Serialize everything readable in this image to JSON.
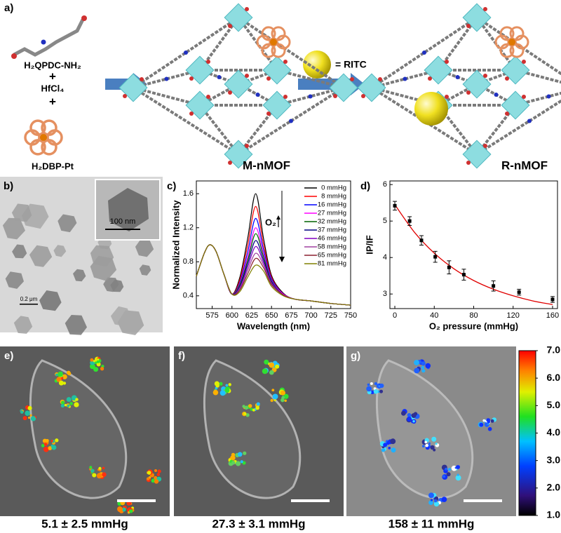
{
  "scheme": {
    "label": "a)",
    "reactant_1": "H₂QPDC-NH₂",
    "plus_1": "+",
    "reactant_2": "HfCl₄",
    "plus_2": "+",
    "reactant_3": "H₂DBP-Pt",
    "product_1": "M-nMOF",
    "product_2": "R-nMOF",
    "sphere_key": "= RITC"
  },
  "tem": {
    "label": "b)",
    "inset_scale": "100 nm",
    "scale": "0.2 μm"
  },
  "chart_data": [
    {
      "type": "line",
      "label": "c)",
      "xlabel": "Wavelength (nm)",
      "ylabel": "Normalized Intensity",
      "annotation": "O₂",
      "x": [
        555,
        565,
        572,
        580,
        590,
        600,
        610,
        620,
        630,
        640,
        650,
        665,
        680,
        700,
        725,
        750
      ],
      "xlim": [
        555,
        750
      ],
      "xticks": [
        575,
        600,
        625,
        650,
        675,
        700,
        725,
        750
      ],
      "ylim": [
        0.25,
        1.75
      ],
      "yticks": [
        0.4,
        0.8,
        1.2,
        1.6
      ],
      "legend": "upper right",
      "series": [
        {
          "name": "0 mmHg",
          "color": "#000000",
          "values": [
            0.63,
            0.9,
            1.0,
            0.92,
            0.65,
            0.42,
            0.62,
            1.08,
            1.6,
            1.07,
            0.64,
            0.43,
            0.36,
            0.34,
            0.31,
            0.29
          ]
        },
        {
          "name": "8 mmHg",
          "color": "#ff0000",
          "values": [
            0.63,
            0.9,
            1.0,
            0.92,
            0.65,
            0.42,
            0.59,
            1.0,
            1.45,
            1.0,
            0.62,
            0.42,
            0.36,
            0.34,
            0.31,
            0.29
          ]
        },
        {
          "name": "16 mmHg",
          "color": "#0000ff",
          "values": [
            0.63,
            0.9,
            1.0,
            0.92,
            0.65,
            0.42,
            0.56,
            0.92,
            1.31,
            0.94,
            0.6,
            0.42,
            0.36,
            0.34,
            0.31,
            0.29
          ]
        },
        {
          "name": "27 mmHg",
          "color": "#ff00ff",
          "values": [
            0.63,
            0.9,
            1.0,
            0.92,
            0.65,
            0.42,
            0.54,
            0.86,
            1.2,
            0.89,
            0.58,
            0.42,
            0.36,
            0.34,
            0.31,
            0.29
          ]
        },
        {
          "name": "32 mmHg",
          "color": "#006400",
          "values": [
            0.63,
            0.9,
            1.0,
            0.92,
            0.65,
            0.42,
            0.53,
            0.82,
            1.13,
            0.86,
            0.57,
            0.41,
            0.36,
            0.34,
            0.31,
            0.29
          ]
        },
        {
          "name": "37 mmHg",
          "color": "#000080",
          "values": [
            0.63,
            0.9,
            1.0,
            0.92,
            0.65,
            0.42,
            0.51,
            0.78,
            1.05,
            0.82,
            0.56,
            0.41,
            0.36,
            0.34,
            0.31,
            0.29
          ]
        },
        {
          "name": "46 mmHg",
          "color": "#8000c0",
          "values": [
            0.63,
            0.9,
            1.0,
            0.92,
            0.65,
            0.42,
            0.5,
            0.74,
            0.98,
            0.79,
            0.55,
            0.41,
            0.36,
            0.34,
            0.31,
            0.29
          ]
        },
        {
          "name": "58 mmHg",
          "color": "#a040a0",
          "values": [
            0.63,
            0.9,
            1.0,
            0.92,
            0.65,
            0.42,
            0.48,
            0.7,
            0.9,
            0.76,
            0.54,
            0.41,
            0.36,
            0.34,
            0.31,
            0.29
          ]
        },
        {
          "name": "65 mmHg",
          "color": "#8b2030",
          "values": [
            0.63,
            0.9,
            1.0,
            0.92,
            0.65,
            0.42,
            0.47,
            0.66,
            0.84,
            0.73,
            0.53,
            0.41,
            0.36,
            0.34,
            0.31,
            0.29
          ]
        },
        {
          "name": "81 mmHg",
          "color": "#808000",
          "values": [
            0.63,
            0.9,
            1.0,
            0.92,
            0.65,
            0.42,
            0.45,
            0.62,
            0.76,
            0.69,
            0.51,
            0.4,
            0.36,
            0.34,
            0.31,
            0.29
          ]
        }
      ]
    },
    {
      "type": "scatter",
      "label": "d)",
      "xlabel": "O₂ pressure (mmHg)",
      "ylabel": "IP/IF",
      "color": "#000000",
      "x": [
        0,
        15,
        27,
        41,
        55,
        70,
        100,
        126,
        160
      ],
      "values": [
        5.42,
        5.0,
        4.47,
        4.02,
        3.73,
        3.53,
        3.22,
        3.05,
        2.85
      ],
      "errors": [
        0.12,
        0.12,
        0.13,
        0.15,
        0.18,
        0.15,
        0.14,
        0.08,
        0.08
      ],
      "fit": {
        "color": "#e00000",
        "x": [
          0,
          20,
          40,
          60,
          80,
          100,
          120,
          140,
          160
        ],
        "values": [
          5.45,
          4.69,
          4.12,
          3.69,
          3.37,
          3.13,
          2.95,
          2.81,
          2.71
        ]
      },
      "xlim": [
        -5,
        165
      ],
      "xticks": [
        0,
        40,
        80,
        120,
        160
      ],
      "ylim": [
        2.6,
        6.1
      ],
      "yticks": [
        3,
        4,
        5,
        6
      ]
    }
  ],
  "imaging": {
    "panels": [
      {
        "label": "e)",
        "caption": "5.1 ± 2.5 mmHg"
      },
      {
        "label": "f)",
        "caption": "27.3 ± 3.1 mmHg"
      },
      {
        "label": "g)",
        "caption": "158 ± 11 mmHg"
      }
    ],
    "colorbar": {
      "lim": [
        1,
        7
      ],
      "ticks": [
        {
          "value": 1,
          "label": "1.0"
        },
        {
          "value": 2,
          "label": "2.0"
        },
        {
          "value": 3,
          "label": "3.0"
        },
        {
          "value": 4,
          "label": "4.0"
        },
        {
          "value": 5,
          "label": "5.0"
        },
        {
          "value": 6,
          "label": "6.0"
        },
        {
          "value": 7,
          "label": "7.0"
        }
      ]
    }
  }
}
